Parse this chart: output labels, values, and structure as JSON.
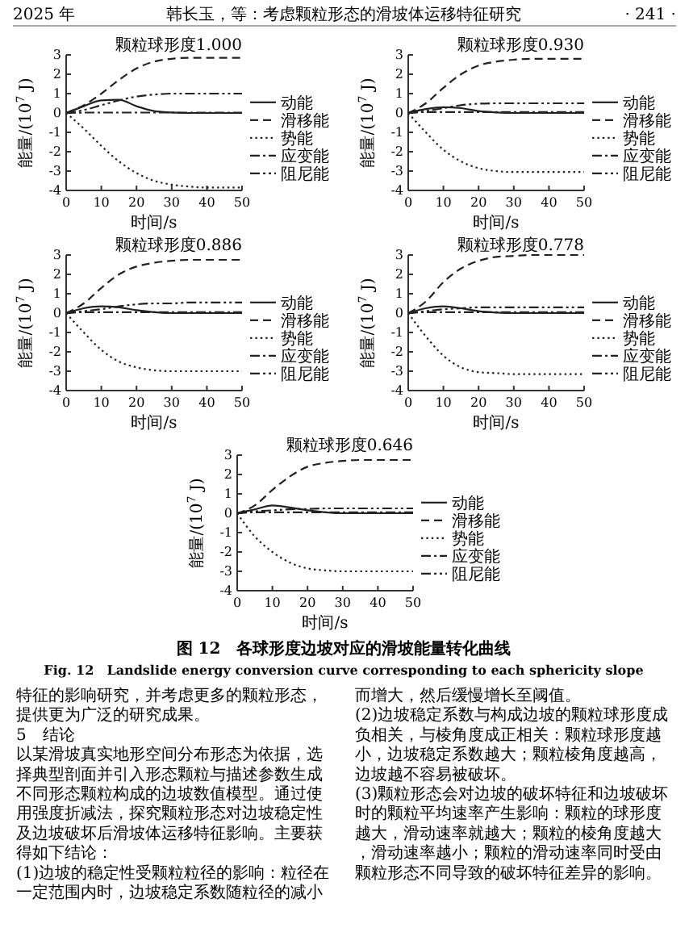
{
  "chart_data": [
    {
      "type": "line",
      "xlabel": "时间/s",
      "ylabel": "能量/(10$^{7}$ J)",
      "annotations": [
        "颗粒球形度1.000"
      ],
      "x": [
        0,
        5,
        10,
        15,
        20,
        25,
        30,
        35,
        40,
        45,
        50
      ],
      "xlim": [
        0,
        50
      ],
      "xticks": [
        0,
        10,
        20,
        30,
        40,
        50
      ],
      "ylim": [
        -4,
        3
      ],
      "yticks": [
        -4,
        -3,
        -2,
        -1,
        0,
        1,
        2,
        3
      ],
      "legend": "right",
      "series": [
        {
          "name": "动能",
          "color": "#222222",
          "line_style": "solid",
          "values": [
            0,
            0.35,
            0.65,
            0.68,
            0.35,
            0.1,
            0.03,
            0,
            0,
            0,
            0
          ]
        },
        {
          "name": "滑移能",
          "color": "#222222",
          "line_style": "dashed",
          "values": [
            0,
            0.4,
            1.0,
            1.7,
            2.3,
            2.65,
            2.8,
            2.85,
            2.85,
            2.85,
            2.85
          ]
        },
        {
          "name": "势能",
          "color": "#222222",
          "line_style": "dotted",
          "values": [
            0,
            -0.8,
            -1.7,
            -2.5,
            -3.1,
            -3.5,
            -3.7,
            -3.8,
            -3.85,
            -3.85,
            -3.85
          ]
        },
        {
          "name": "应变能",
          "color": "#222222",
          "line_style": "dashdot",
          "values": [
            0,
            0.02,
            0.02,
            0.02,
            0.02,
            0.02,
            0.02,
            0.02,
            0.02,
            0.02,
            0.02
          ]
        },
        {
          "name": "阻尼能",
          "color": "#222222",
          "line_style": "dashdotdot",
          "values": [
            0,
            0.15,
            0.4,
            0.65,
            0.85,
            0.95,
            1.0,
            1.0,
            1.0,
            1.0,
            1.0
          ]
        }
      ]
    },
    {
      "type": "line",
      "xlabel": "时间/s",
      "ylabel": "能量/(10$^{7}$ J)",
      "annotations": [
        "颗粒球形度0.930"
      ],
      "x": [
        0,
        5,
        10,
        15,
        20,
        25,
        30,
        35,
        40,
        45,
        50
      ],
      "xlim": [
        0,
        50
      ],
      "xticks": [
        0,
        10,
        20,
        30,
        40,
        50
      ],
      "ylim": [
        -4,
        3
      ],
      "yticks": [
        -4,
        -3,
        -2,
        -1,
        0,
        1,
        2,
        3
      ],
      "legend": "right",
      "series": [
        {
          "name": "动能",
          "color": "#222222",
          "line_style": "solid",
          "values": [
            0,
            0.2,
            0.3,
            0.25,
            0.1,
            0.03,
            0,
            0,
            0,
            0,
            0
          ]
        },
        {
          "name": "滑移能",
          "color": "#222222",
          "line_style": "dashed",
          "values": [
            0,
            0.5,
            1.3,
            2.0,
            2.45,
            2.65,
            2.75,
            2.8,
            2.8,
            2.8,
            2.8
          ]
        },
        {
          "name": "势能",
          "color": "#222222",
          "line_style": "dotted",
          "values": [
            0,
            -1.0,
            -1.9,
            -2.5,
            -2.85,
            -3.0,
            -3.05,
            -3.05,
            -3.05,
            -3.05,
            -3.05
          ]
        },
        {
          "name": "应变能",
          "color": "#222222",
          "line_style": "dashdot",
          "values": [
            0,
            0.05,
            0.05,
            0.05,
            0.05,
            0.05,
            0.05,
            0.05,
            0.05,
            0.05,
            0.05
          ]
        },
        {
          "name": "阻尼能",
          "color": "#222222",
          "line_style": "dashdotdot",
          "values": [
            0,
            0.1,
            0.25,
            0.4,
            0.48,
            0.5,
            0.5,
            0.5,
            0.5,
            0.5,
            0.5
          ]
        }
      ]
    },
    {
      "type": "line",
      "xlabel": "时间/s",
      "ylabel": "能量/(10$^{7}$ J)",
      "annotations": [
        "颗粒球形度0.886"
      ],
      "x": [
        0,
        5,
        10,
        15,
        20,
        25,
        30,
        35,
        40,
        45,
        50
      ],
      "xlim": [
        0,
        50
      ],
      "xticks": [
        0,
        10,
        20,
        30,
        40,
        50
      ],
      "ylim": [
        -4,
        3
      ],
      "yticks": [
        -4,
        -3,
        -2,
        -1,
        0,
        1,
        2,
        3
      ],
      "legend": "right",
      "series": [
        {
          "name": "动能",
          "color": "#222222",
          "line_style": "solid",
          "values": [
            0,
            0.25,
            0.35,
            0.3,
            0.15,
            0.05,
            0,
            0,
            0,
            0,
            0
          ]
        },
        {
          "name": "滑移能",
          "color": "#222222",
          "line_style": "dashed",
          "values": [
            0,
            0.5,
            1.3,
            2.0,
            2.4,
            2.6,
            2.7,
            2.75,
            2.75,
            2.75,
            2.75
          ]
        },
        {
          "name": "势能",
          "color": "#222222",
          "line_style": "dotted",
          "values": [
            0,
            -1.0,
            -1.9,
            -2.5,
            -2.8,
            -2.95,
            -3.0,
            -3.0,
            -3.0,
            -3.0,
            -3.0
          ]
        },
        {
          "name": "应变能",
          "color": "#222222",
          "line_style": "dashdot",
          "values": [
            0,
            0.05,
            0.05,
            0.05,
            0.05,
            0.05,
            0.05,
            0.05,
            0.05,
            0.05,
            0.05
          ]
        },
        {
          "name": "阻尼能",
          "color": "#222222",
          "line_style": "dashdotdot",
          "values": [
            0,
            0.1,
            0.2,
            0.35,
            0.45,
            0.5,
            0.5,
            0.55,
            0.55,
            0.55,
            0.55
          ]
        }
      ]
    },
    {
      "type": "line",
      "xlabel": "时间/s",
      "ylabel": "能量/(10$^{7}$ J)",
      "annotations": [
        "颗粒球形度0.778"
      ],
      "x": [
        0,
        5,
        10,
        15,
        20,
        25,
        30,
        35,
        40,
        45,
        50
      ],
      "xlim": [
        0,
        50
      ],
      "xticks": [
        0,
        10,
        20,
        30,
        40,
        50
      ],
      "ylim": [
        -4,
        3
      ],
      "yticks": [
        -4,
        -3,
        -2,
        -1,
        0,
        1,
        2,
        3
      ],
      "legend": "right",
      "series": [
        {
          "name": "动能",
          "color": "#222222",
          "line_style": "solid",
          "values": [
            0,
            0.25,
            0.35,
            0.25,
            0.1,
            0.03,
            0,
            0,
            0,
            0,
            0
          ]
        },
        {
          "name": "滑移能",
          "color": "#222222",
          "line_style": "dashed",
          "values": [
            0,
            0.6,
            1.6,
            2.3,
            2.7,
            2.9,
            2.95,
            3.0,
            3.0,
            3.0,
            3.0
          ]
        },
        {
          "name": "势能",
          "color": "#222222",
          "line_style": "dotted",
          "values": [
            0,
            -1.2,
            -2.2,
            -2.8,
            -3.05,
            -3.1,
            -3.15,
            -3.15,
            -3.15,
            -3.15,
            -3.15
          ]
        },
        {
          "name": "应变能",
          "color": "#222222",
          "line_style": "dashdot",
          "values": [
            0,
            0.05,
            0.05,
            0.05,
            0.05,
            0.05,
            0.05,
            0.05,
            0.05,
            0.05,
            0.05
          ]
        },
        {
          "name": "阻尼能",
          "color": "#222222",
          "line_style": "dashdotdot",
          "values": [
            0,
            0.1,
            0.2,
            0.25,
            0.3,
            0.3,
            0.3,
            0.3,
            0.3,
            0.3,
            0.3
          ]
        }
      ]
    },
    {
      "type": "line",
      "xlabel": "时间/s",
      "ylabel": "能量/(10$^{7}$ J)",
      "annotations": [
        "颗粒球形度0.646"
      ],
      "x": [
        0,
        5,
        10,
        15,
        20,
        25,
        30,
        35,
        40,
        45,
        50
      ],
      "xlim": [
        0,
        50
      ],
      "xticks": [
        0,
        10,
        20,
        30,
        40,
        50
      ],
      "ylim": [
        -4,
        3
      ],
      "yticks": [
        -4,
        -3,
        -2,
        -1,
        0,
        1,
        2,
        3
      ],
      "legend": "right",
      "series": [
        {
          "name": "动能",
          "color": "#222222",
          "line_style": "solid",
          "values": [
            0,
            0.2,
            0.4,
            0.3,
            0.15,
            0.05,
            0,
            0,
            0,
            0,
            0
          ]
        },
        {
          "name": "滑移能",
          "color": "#222222",
          "line_style": "dashed",
          "values": [
            0,
            0.4,
            1.2,
            1.9,
            2.4,
            2.6,
            2.7,
            2.75,
            2.75,
            2.75,
            2.75
          ]
        },
        {
          "name": "势能",
          "color": "#222222",
          "line_style": "dotted",
          "values": [
            0,
            -1.2,
            -2.0,
            -2.55,
            -2.85,
            -2.95,
            -3.0,
            -3.0,
            -3.0,
            -3.0,
            -3.0
          ]
        },
        {
          "name": "应变能",
          "color": "#222222",
          "line_style": "dashdot",
          "values": [
            0,
            0.05,
            0.05,
            0.05,
            0.05,
            0.05,
            0.05,
            0.05,
            0.05,
            0.05,
            0.05
          ]
        },
        {
          "name": "阻尼能",
          "color": "#222222",
          "line_style": "dashdotdot",
          "values": [
            0,
            0.1,
            0.15,
            0.2,
            0.22,
            0.25,
            0.25,
            0.25,
            0.25,
            0.25,
            0.25
          ]
        }
      ]
    },
    {
      "type": "other",
      "title": "图 12　各球形度边坡对应的滑坡能量转化曲线",
      "subtitle": "Fig. 12　Landslide energy conversion curve corresponding to each sphericity slope",
      "annotations": [
        "2025 年",
        "韩长玉，等：考虑颗粒形态的滑坡体运移特征研究",
        "· 241 ·",
        "特征的影响研究，并考虑更多的颗粒形态，提供更为广泛的研究成果。",
        "5　结论",
        "以某滑坡真实地形空间分布形态为依据，选择典型剖面并引入形态颗粒与描述参数生成不同形态颗粒构成的边坡数值模型。通过使用强度折减法，探究颗粒形态对边坡稳定性及边坡破坏后滑坡体运移特征影响。主要获得如下结论：",
        "(1)边坡的稳定性受颗粒粒径的影响：粒径在一定范围内时，边坡稳定系数随粒径的减小而增大，然后缓慢增长至阈值。",
        "(2)边坡稳定系数与构成边坡的颗粒球形度成负相关，与棱角度成正相关：颗粒球形度越小，边坡稳定系数越大；颗粒棱角度越高，边坡越不容易被破坏。",
        "(3)颗粒形态会对边坡的破坏特征和边坡破坏时的颗粒平均速率产生影响：颗粒的球形度越大，滑动速率就越大；颗粒的棱角度越大，滑动速率越小；颗粒的滑动速率同时受由颗粒形态不同导致的破坏特征差异的影响。"
      ]
    }
  ]
}
